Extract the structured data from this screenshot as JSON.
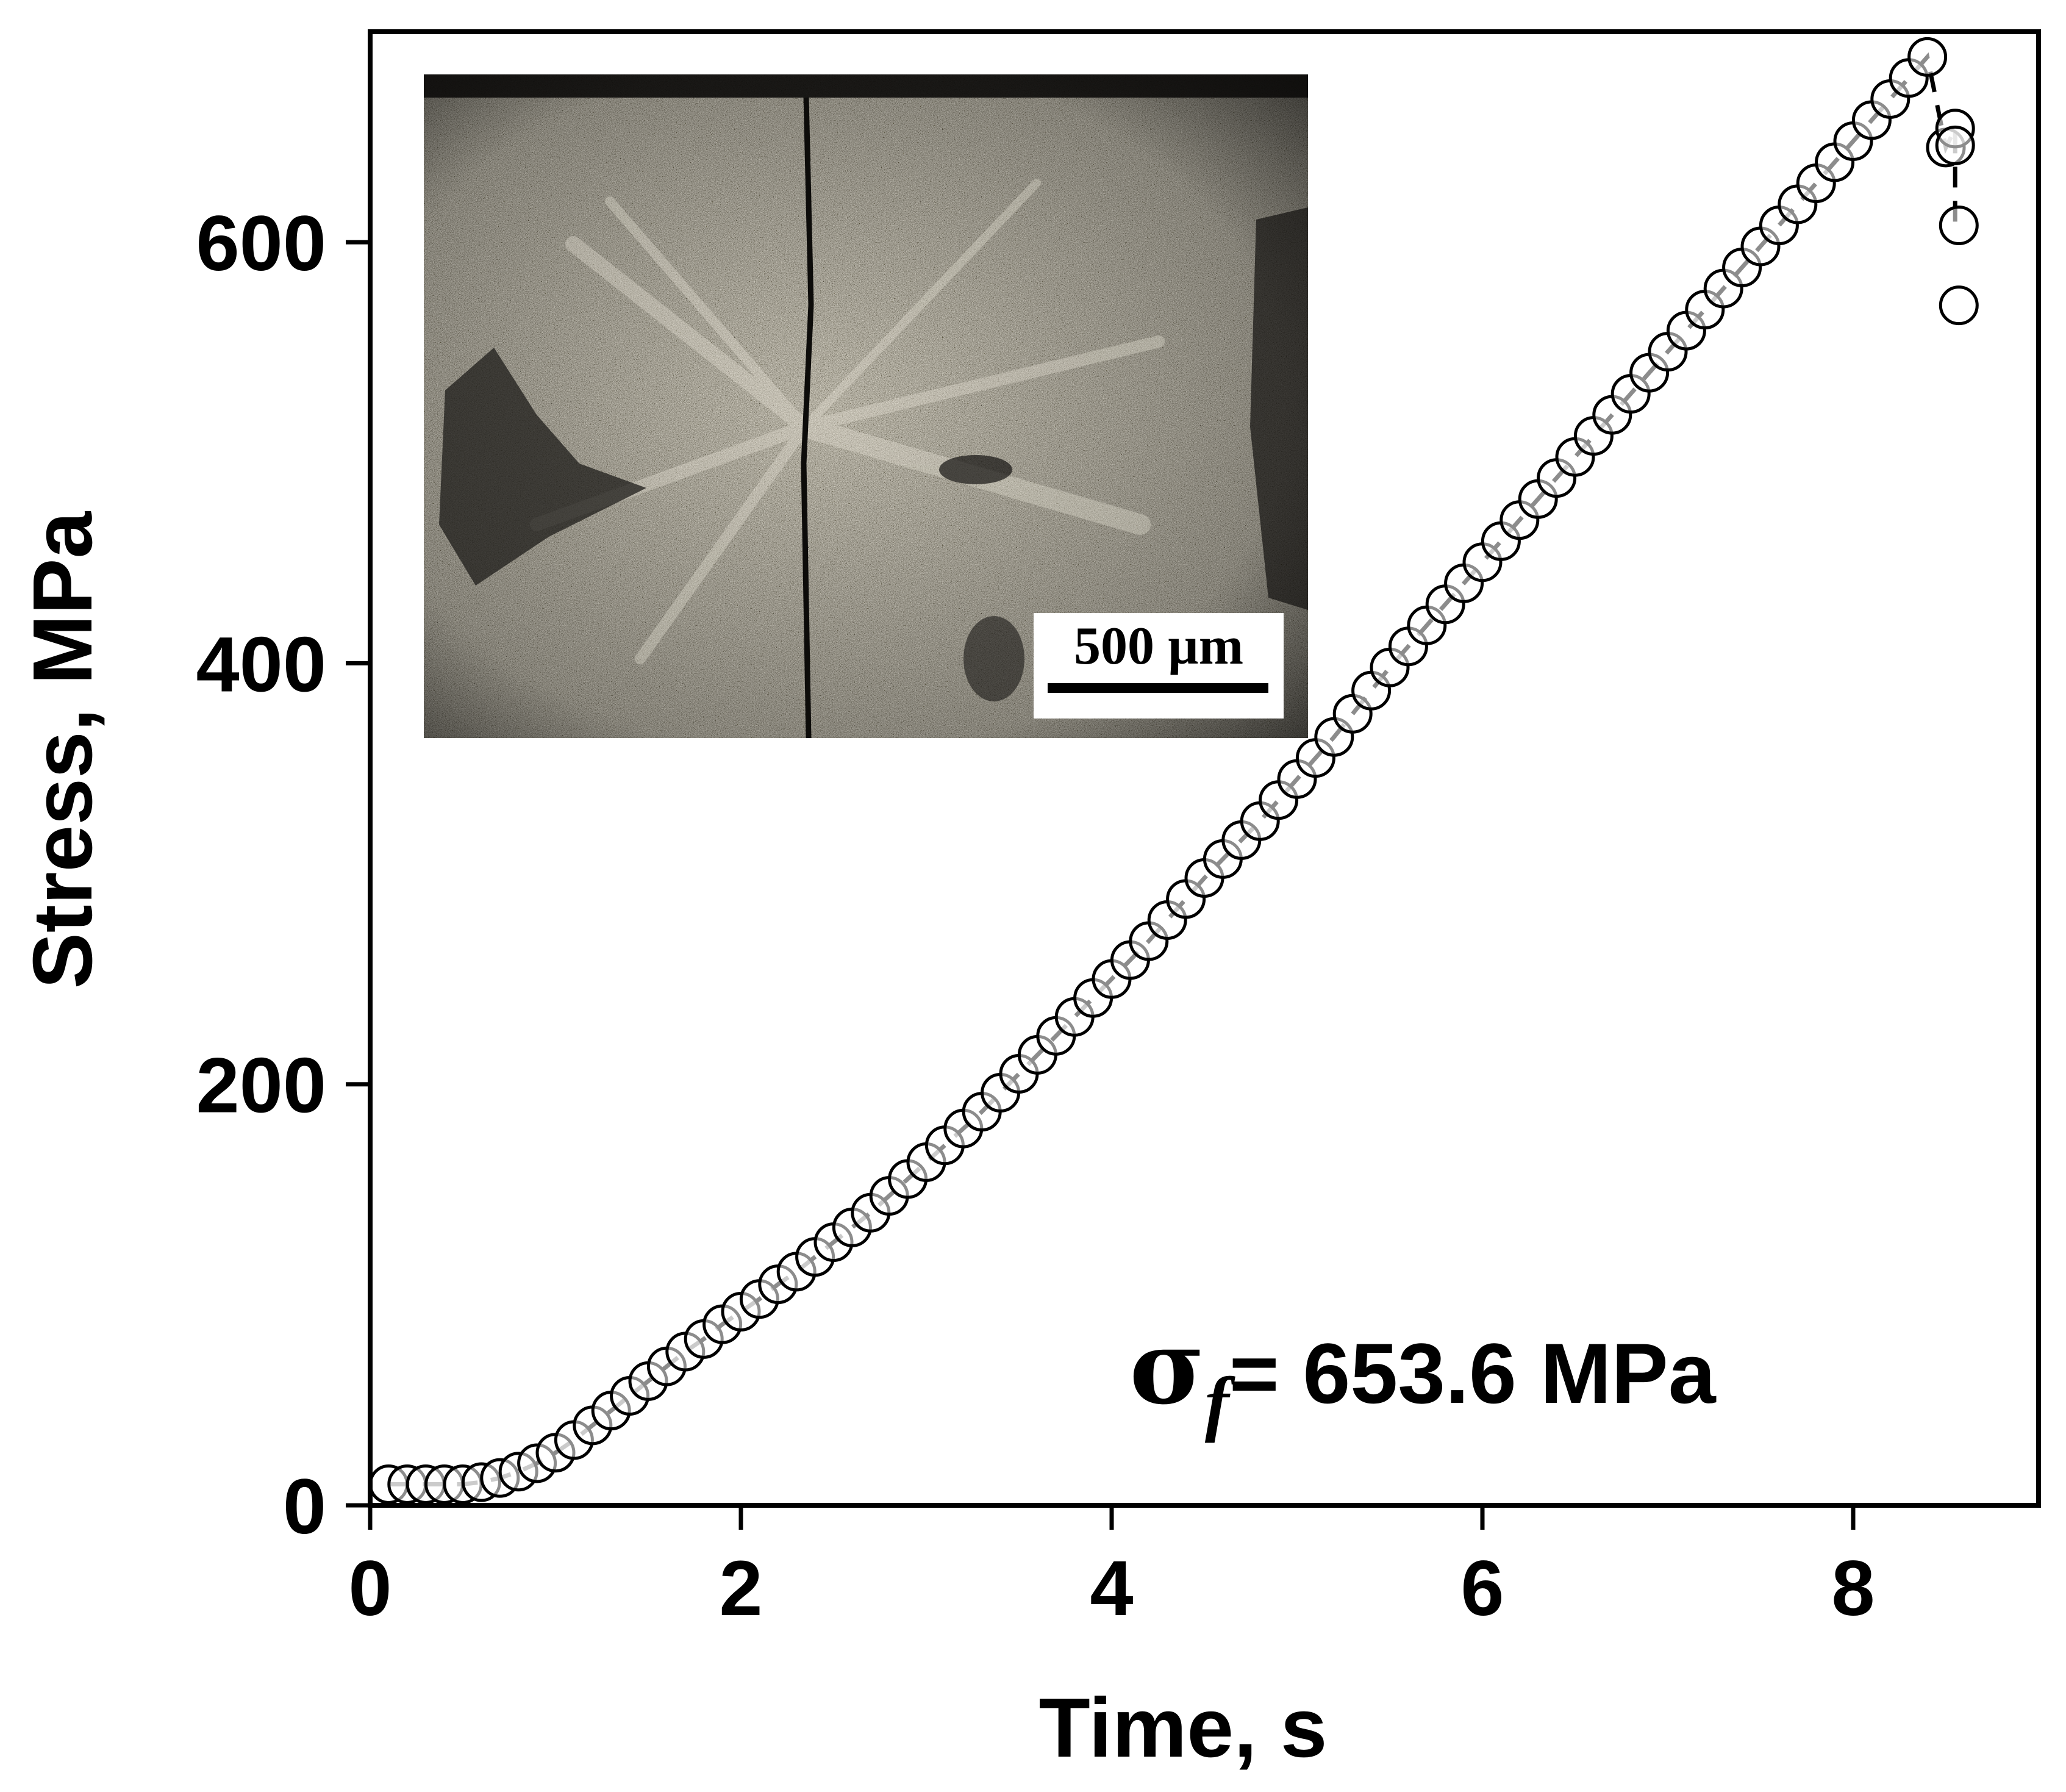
{
  "chart_data": {
    "type": "scatter",
    "title": "",
    "xlabel": "Time, s",
    "ylabel": "Stress, MPa",
    "xlim": [
      0,
      9
    ],
    "ylim": [
      0,
      700
    ],
    "xticks": [
      "0",
      "2",
      "4",
      "6",
      "8"
    ],
    "yticks": [
      "0",
      "200",
      "400",
      "600"
    ],
    "grid": false,
    "legend": "none",
    "annotation": {
      "symbol": "σ",
      "subscript": "f",
      "text": "= 653.6 MPa"
    },
    "inset": {
      "kind": "fracture-surface-micrograph",
      "scale_bar_label": "500 µm"
    },
    "fit_line": {
      "style": "dashed",
      "color": "#000000"
    },
    "marker": {
      "shape": "open-circle",
      "fill": "#ffffff",
      "stroke": "#000000"
    },
    "series": [
      {
        "x": [
          0.1,
          0.2,
          0.3,
          0.4,
          0.5,
          0.6,
          0.7,
          0.8,
          0.9,
          1.0,
          1.1,
          1.2,
          1.3,
          1.4,
          1.5,
          1.6,
          1.7,
          1.8,
          1.9,
          2.0,
          2.1,
          2.2,
          2.3,
          2.4,
          2.5,
          2.6,
          2.7,
          2.8,
          2.9,
          3.0,
          3.1,
          3.2,
          3.3,
          3.4,
          3.5,
          3.6,
          3.7,
          3.8,
          3.9,
          4.0,
          4.1,
          4.2,
          4.3,
          4.4,
          4.5,
          4.6,
          4.7,
          4.8,
          4.9,
          5.0,
          5.1,
          5.2,
          5.3,
          5.4,
          5.5,
          5.6,
          5.7,
          5.8,
          5.9,
          6.0,
          6.1,
          6.2,
          6.3,
          6.4,
          6.5,
          6.6,
          6.7,
          6.8,
          6.9,
          7.0,
          7.1,
          7.2,
          7.3,
          7.4,
          7.5,
          7.6,
          7.7,
          7.8,
          7.9,
          8.0,
          8.1,
          8.2,
          8.3,
          8.4,
          8.5,
          8.55,
          8.55,
          8.57,
          8.57
        ],
        "y": [
          10,
          10,
          10,
          10,
          10,
          11,
          13,
          16,
          20,
          25,
          31,
          38,
          45,
          52,
          59,
          66,
          73,
          79,
          86,
          92,
          98,
          105,
          111,
          118,
          125,
          132,
          139,
          147,
          155,
          163,
          171,
          179,
          187,
          196,
          205,
          214,
          223,
          232,
          241,
          250,
          259,
          268,
          278,
          288,
          298,
          307,
          316,
          325,
          335,
          345,
          355,
          365,
          376,
          387,
          398,
          408,
          418,
          428,
          438,
          448,
          458,
          468,
          478,
          488,
          498,
          508,
          518,
          528,
          538,
          548,
          558,
          568,
          578,
          588,
          598,
          608,
          618,
          628,
          638,
          648,
          658,
          668,
          678,
          688,
          645,
          654,
          646,
          608,
          570
        ]
      }
    ]
  }
}
